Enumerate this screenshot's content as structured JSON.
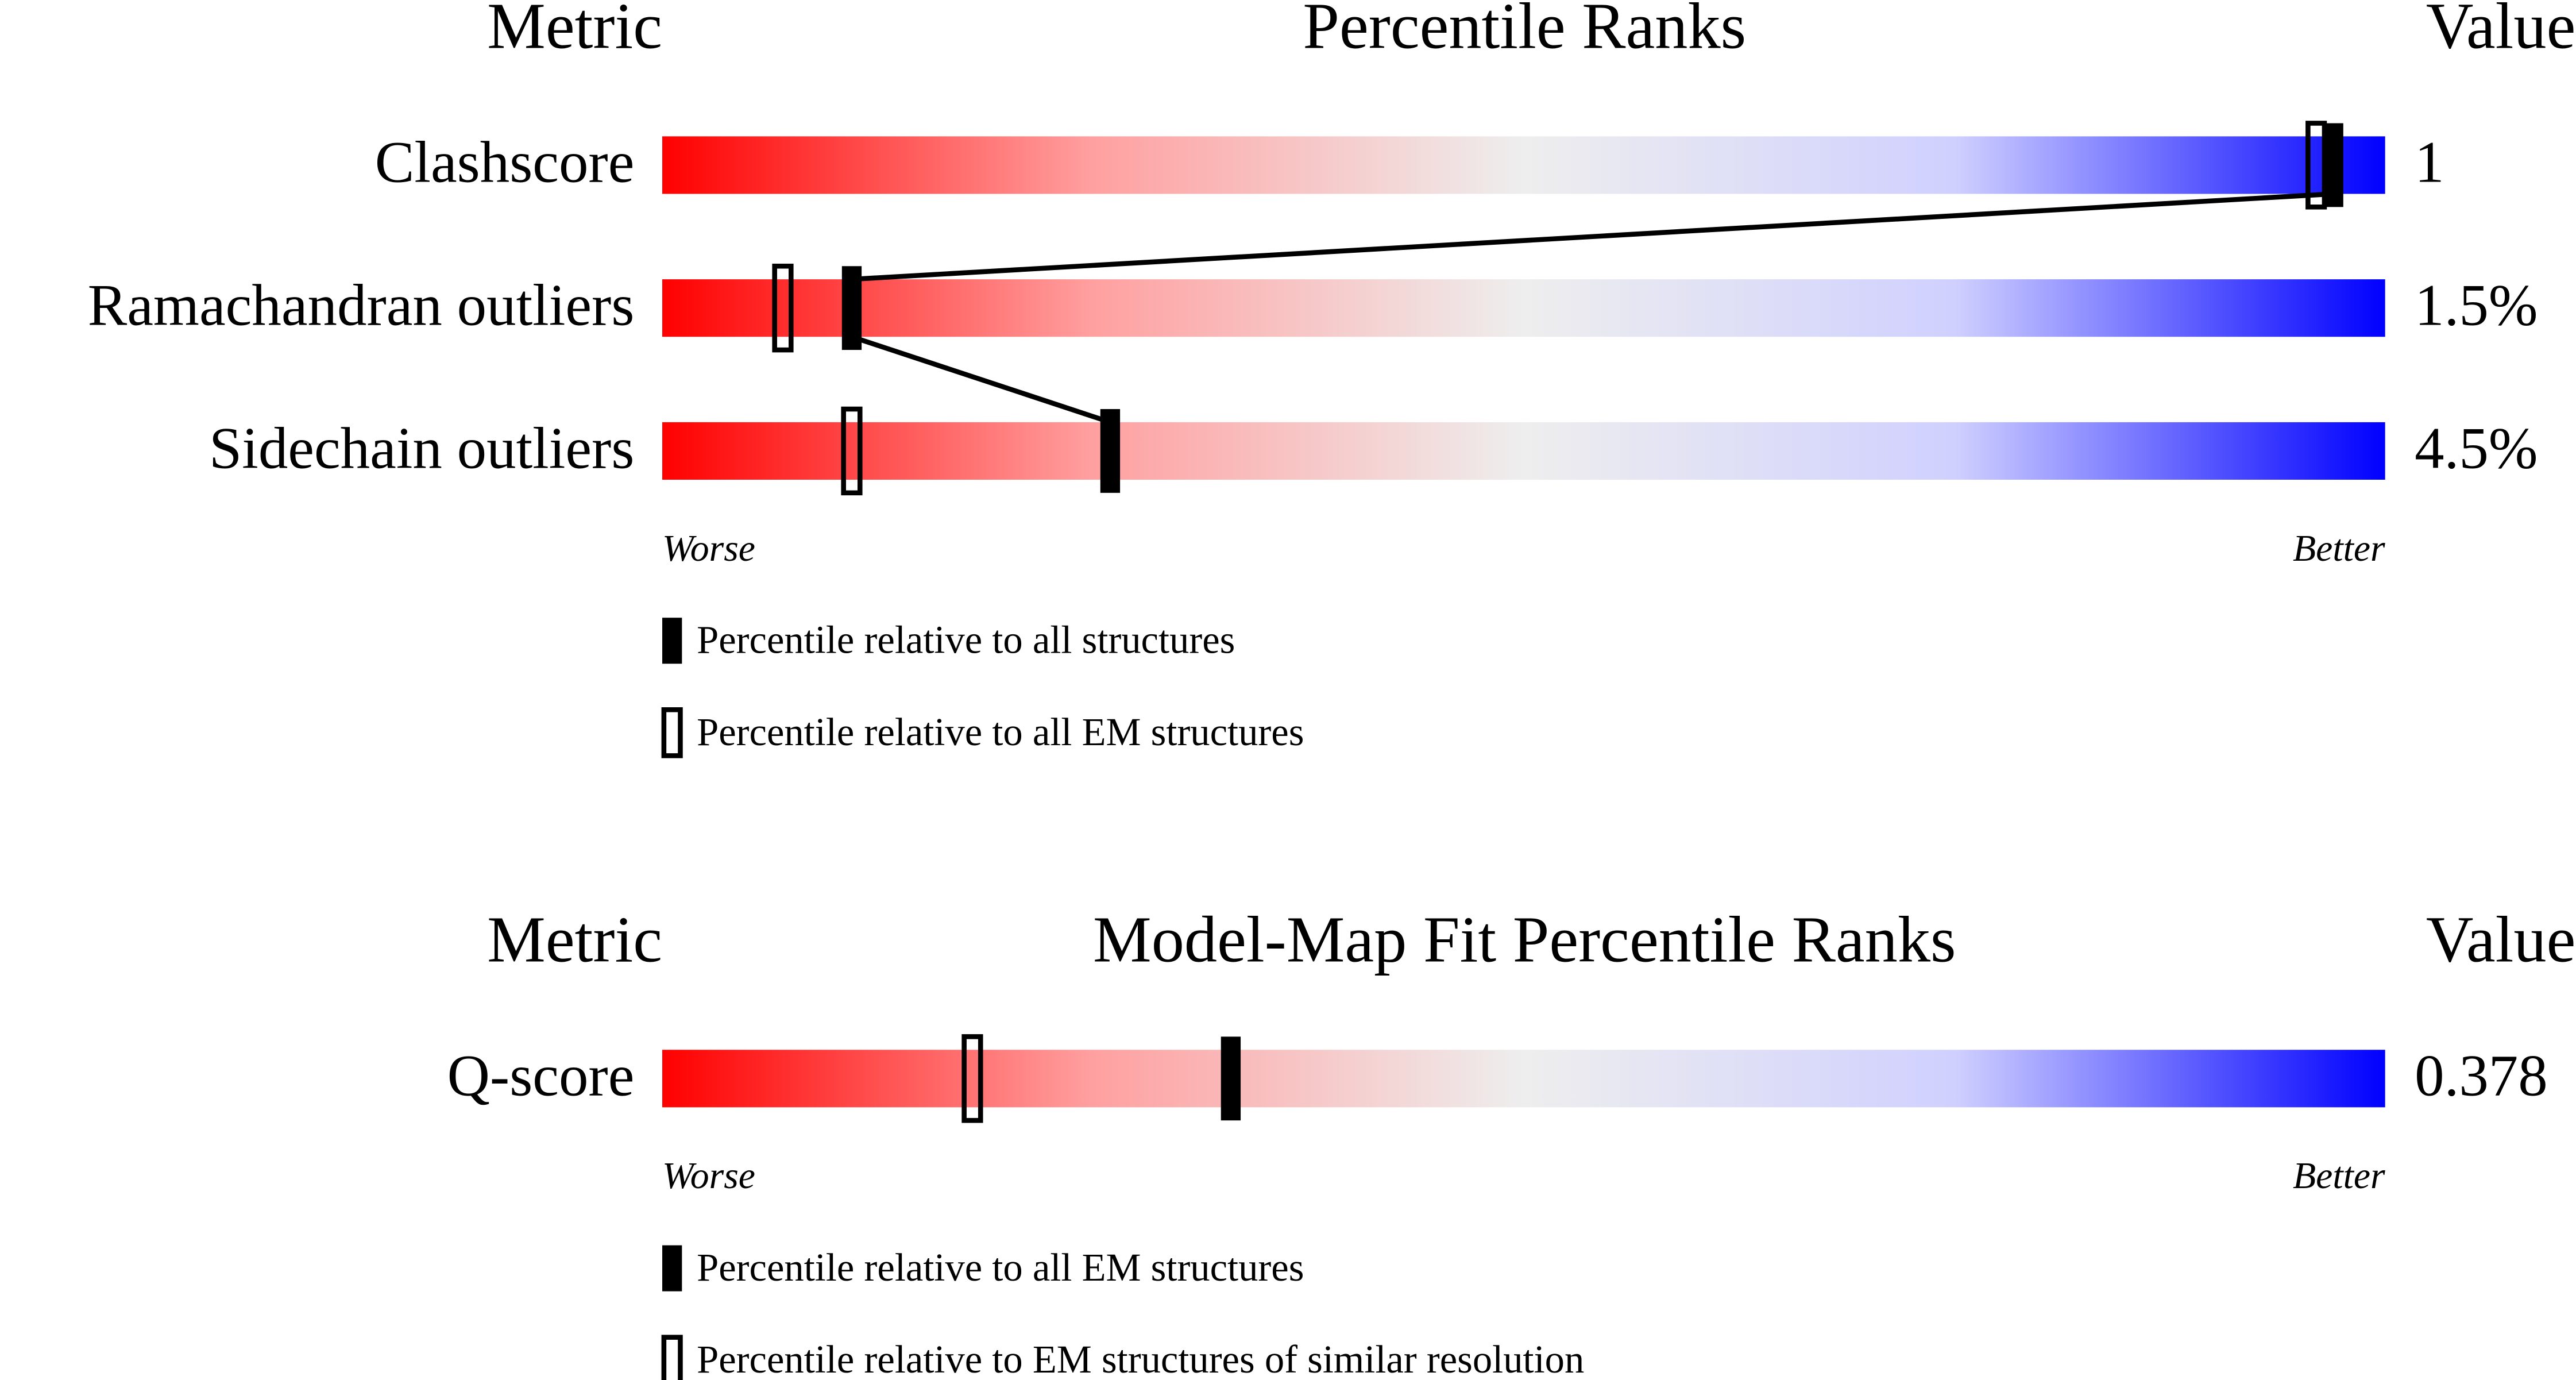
{
  "chart_data": [
    {
      "type": "percentile-slider",
      "title": "Percentile Ranks",
      "metric_header": "Metric",
      "value_header": "Value",
      "worse_label": "Worse",
      "better_label": "Better",
      "xlim": [
        0,
        100
      ],
      "categories": [
        "Clashscore",
        "Ramachandran outliers",
        "Sidechain outliers"
      ],
      "metric_values": [
        1,
        1.5,
        4.5
      ],
      "value_labels": [
        "1",
        "1.5%",
        "4.5%"
      ],
      "series": [
        {
          "name": "Percentile relative to all structures",
          "style": "filled",
          "connected": true,
          "values": [
            97,
            11,
            26
          ]
        },
        {
          "name": "Percentile relative to all EM structures",
          "style": "hollow",
          "connected": false,
          "values": [
            96,
            7,
            11
          ]
        }
      ]
    },
    {
      "type": "percentile-slider",
      "title": "Model-Map Fit Percentile Ranks",
      "metric_header": "Metric",
      "value_header": "Value",
      "worse_label": "Worse",
      "better_label": "Better",
      "xlim": [
        0,
        100
      ],
      "categories": [
        "Q-score"
      ],
      "metric_values": [
        0.378
      ],
      "value_labels": [
        "0.378"
      ],
      "series": [
        {
          "name": "Percentile relative to all EM structures",
          "style": "filled",
          "connected": true,
          "values": [
            33
          ]
        },
        {
          "name": "Percentile relative to EM structures of similar resolution",
          "style": "hollow",
          "connected": false,
          "values": [
            18
          ]
        }
      ]
    }
  ]
}
